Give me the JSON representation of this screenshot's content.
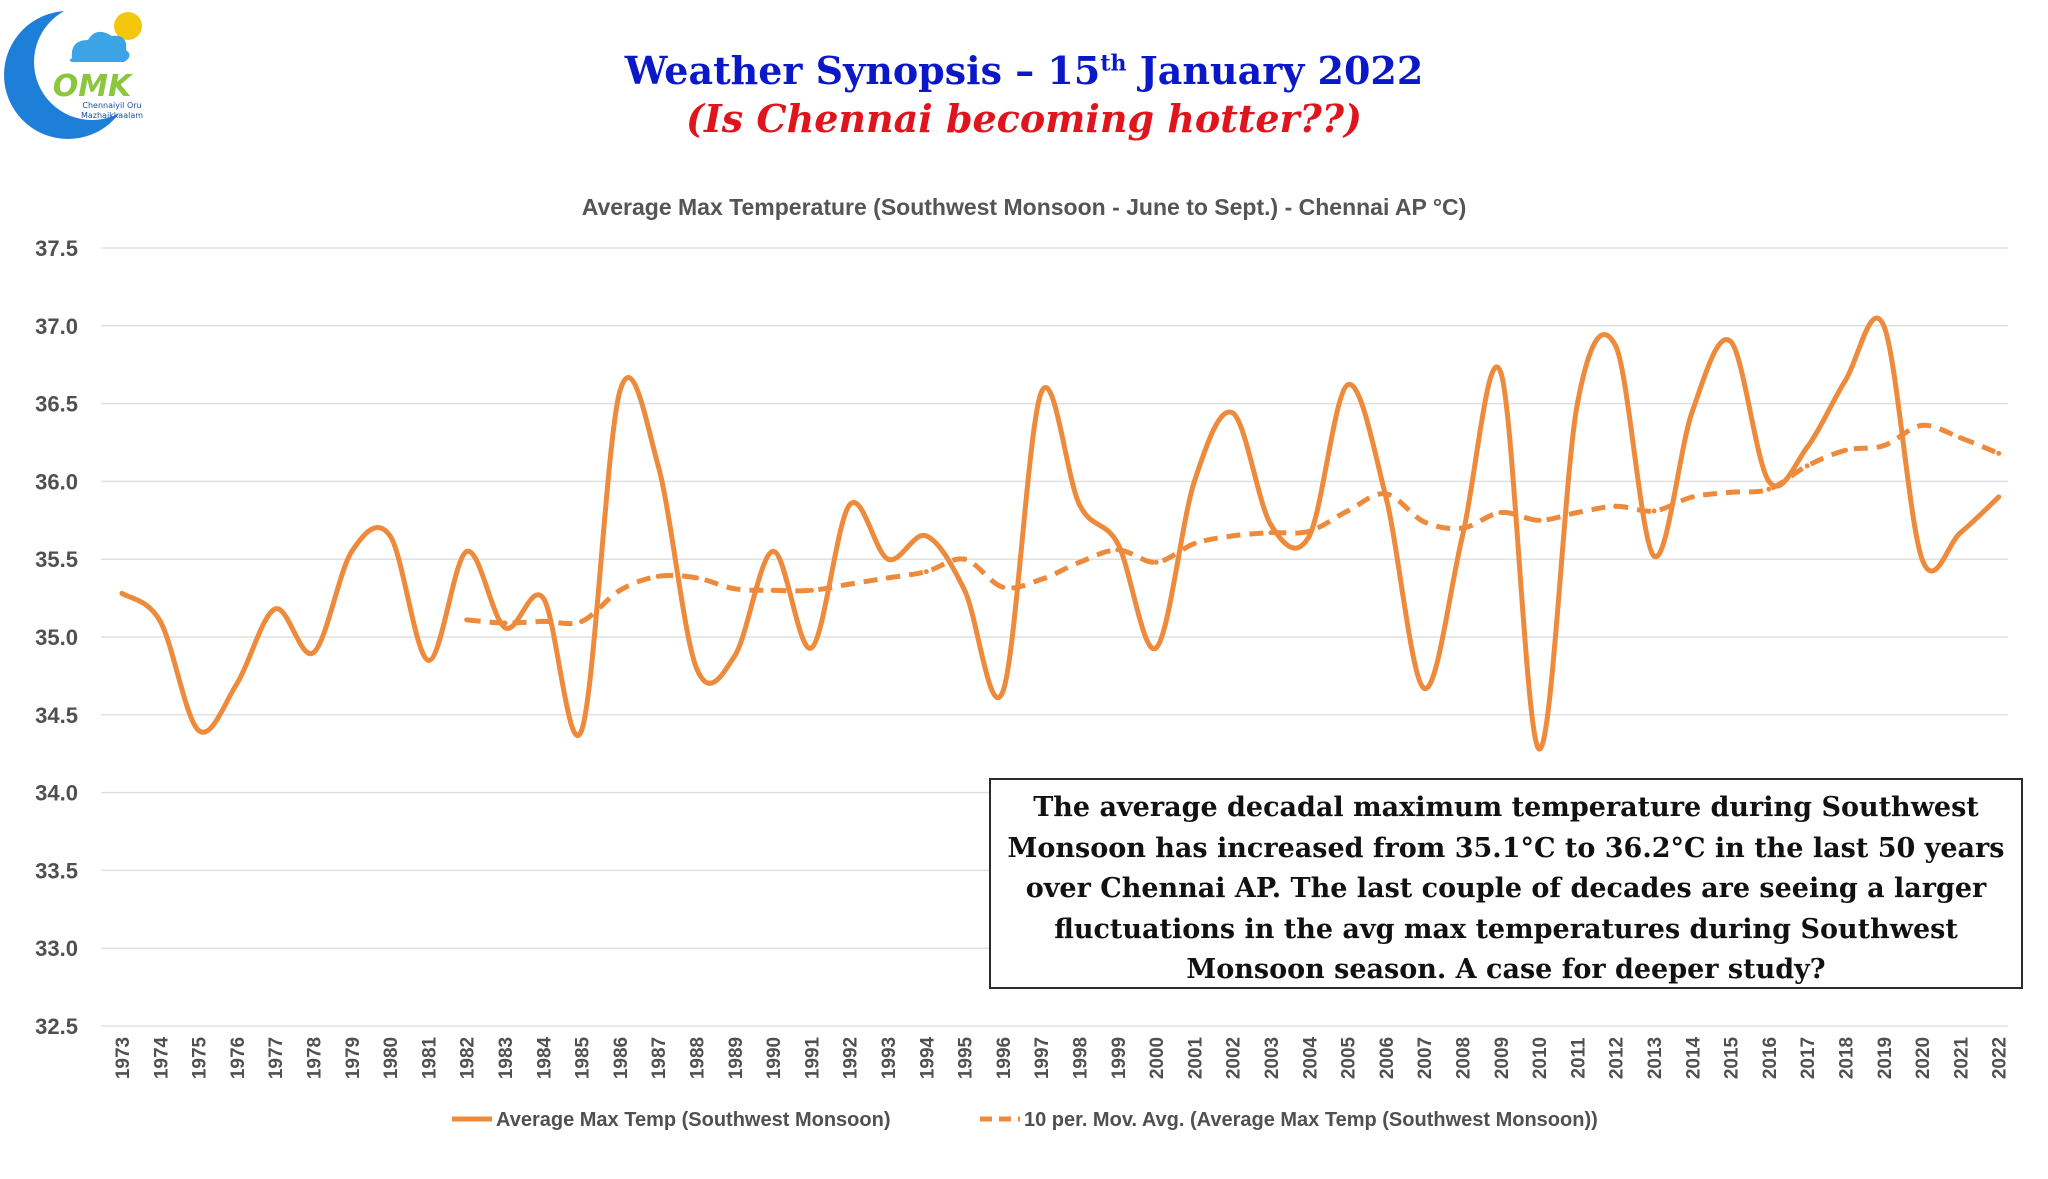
{
  "header": {
    "title_main": "Weather Synopsis – 15",
    "title_sup": "th",
    "title_rest": " January 2022",
    "subtitle": "(Is Chennai becoming hotter??)"
  },
  "logo": {
    "name": "omk-logo-icon",
    "text": "OMK",
    "caption_line1": "Chennaiyil Oru",
    "caption_line2": "Mazhaikkaalam"
  },
  "colors": {
    "series": "#ed8a3c",
    "grid": "#e0e0e0",
    "axis_text": "#505050",
    "title_blue": "#0a18c8",
    "title_red": "#e0141c"
  },
  "note": "The average decadal maximum temperature during Southwest Monsoon has increased from 35.1°C to 36.2°C in the last 50 years over Chennai AP. The last couple of decades are seeing a larger fluctuations in the avg max temperatures during Southwest Monsoon season. A case for deeper study?",
  "chart_data": {
    "type": "line",
    "title": "Average Max Temperature (Southwest Monsoon - June to Sept.)  - Chennai AP °C)",
    "ylim": [
      32.5,
      37.5
    ],
    "yticks": [
      "37.5",
      "37.0",
      "36.5",
      "36.0",
      "35.5",
      "35.0",
      "34.5",
      "34.0",
      "33.5",
      "33.0",
      "32.5"
    ],
    "categories": [
      "1973",
      "1974",
      "1975",
      "1976",
      "1977",
      "1978",
      "1979",
      "1980",
      "1981",
      "1982",
      "1983",
      "1984",
      "1985",
      "1986",
      "1987",
      "1988",
      "1989",
      "1990",
      "1991",
      "1992",
      "1993",
      "1994",
      "1995",
      "1996",
      "1997",
      "1998",
      "1999",
      "2000",
      "2001",
      "2002",
      "2003",
      "2004",
      "2005",
      "2006",
      "2007",
      "2008",
      "2009",
      "2010",
      "2011",
      "2012",
      "2013",
      "2014",
      "2015",
      "2016",
      "2017",
      "2018",
      "2019",
      "2020",
      "2021",
      "2022"
    ],
    "grid": true,
    "legend_position": "bottom",
    "series": [
      {
        "name": "Average Max Temp (Southwest Monsoon)",
        "style": "solid",
        "values": [
          35.28,
          35.1,
          34.4,
          34.7,
          35.18,
          34.9,
          35.55,
          35.65,
          34.85,
          35.55,
          35.06,
          35.25,
          34.4,
          36.58,
          36.1,
          34.8,
          34.88,
          35.55,
          34.93,
          35.85,
          35.5,
          35.65,
          35.3,
          34.65,
          36.57,
          35.85,
          35.6,
          34.93,
          36.0,
          36.44,
          35.72,
          35.65,
          36.62,
          35.9,
          34.67,
          35.65,
          36.7,
          34.28,
          36.5,
          36.87,
          35.52,
          36.45,
          36.9,
          36.0,
          36.22,
          36.65,
          37.0,
          35.5,
          35.67,
          35.9
        ]
      },
      {
        "name": "10 per. Mov. Avg. (Average Max Temp (Southwest Monsoon))",
        "style": "dashed",
        "values": [
          null,
          null,
          null,
          null,
          null,
          null,
          null,
          null,
          null,
          35.11,
          35.09,
          35.1,
          35.1,
          35.3,
          35.39,
          35.38,
          35.31,
          35.3,
          35.3,
          35.34,
          35.38,
          35.42,
          35.5,
          35.32,
          35.37,
          35.48,
          35.56,
          35.48,
          35.6,
          35.65,
          35.67,
          35.68,
          35.81,
          35.92,
          35.74,
          35.7,
          35.8,
          35.75,
          35.8,
          35.84,
          35.81,
          35.9,
          35.93,
          35.95,
          36.1,
          36.2,
          36.23,
          36.36,
          36.28,
          36.18
        ]
      }
    ]
  }
}
